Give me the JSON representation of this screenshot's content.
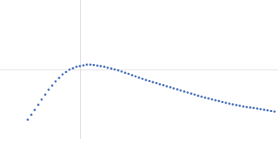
{
  "chart_data": {
    "type": "scatter",
    "color": "#3b67b5",
    "grid": true,
    "xlim": [
      0,
      400
    ],
    "ylim": [
      0,
      200
    ],
    "xticks": [
      115
    ],
    "yticks": [
      100
    ],
    "x": [
      40,
      45,
      50,
      55,
      60,
      65,
      70,
      75,
      80,
      85,
      90,
      95,
      100,
      105,
      110,
      115,
      120,
      125,
      130,
      135,
      140,
      145,
      150,
      155,
      160,
      165,
      170,
      175,
      180,
      185,
      190,
      195,
      200,
      205,
      210,
      215,
      220,
      225,
      230,
      235,
      240,
      245,
      250,
      255,
      260,
      265,
      270,
      275,
      280,
      285,
      290,
      295,
      300,
      305,
      310,
      315,
      320,
      325,
      330,
      335,
      340,
      345,
      350,
      355,
      360,
      365,
      370,
      375,
      380,
      385,
      390,
      395
    ],
    "values": [
      28,
      35,
      42,
      49.5,
      57,
      64,
      71,
      77,
      83,
      88,
      93,
      96.5,
      100,
      102,
      104,
      105,
      106,
      107,
      107,
      106.5,
      105.8,
      105,
      104,
      102.8,
      101.5,
      100.2,
      99,
      97.2,
      95.5,
      93.8,
      92,
      90.2,
      88.5,
      86.8,
      85,
      83.5,
      82,
      80.5,
      79,
      77.5,
      76,
      74.5,
      73,
      71.5,
      70,
      68.5,
      67,
      65.5,
      64,
      62.5,
      61,
      59.8,
      58.5,
      57.2,
      56,
      54.8,
      53.5,
      52.2,
      51,
      50,
      49,
      48,
      47,
      46.2,
      45.5,
      44.8,
      44,
      43.2,
      42.3,
      41.4,
      40.5,
      39.7
    ]
  }
}
